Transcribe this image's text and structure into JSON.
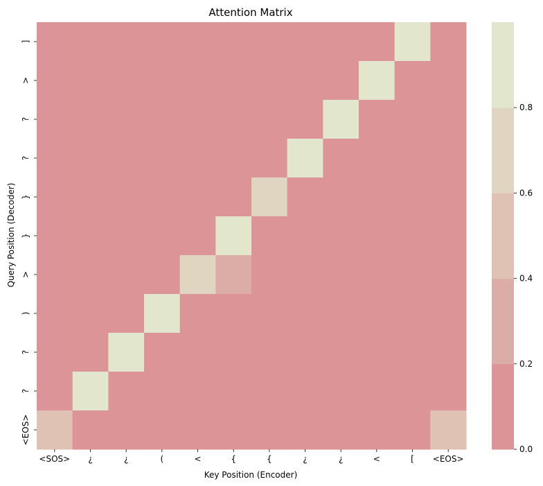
{
  "chart_data": {
    "type": "heatmap",
    "title": "Attention Matrix",
    "xlabel": "Key Position (Encoder)",
    "ylabel": "Query Position (Decoder)",
    "x_categories": [
      "<SOS>",
      "¿",
      "¿",
      "(",
      "<",
      "{",
      "{",
      "¿",
      "¿",
      "<",
      "[",
      "<EOS>"
    ],
    "y_categories": [
      "]",
      ">",
      "?",
      "?",
      "}",
      "}",
      ">",
      ")",
      "?",
      "?",
      "<EOS>"
    ],
    "values": [
      [
        0,
        0,
        0,
        0,
        0,
        0,
        0,
        0,
        0,
        0,
        0.9,
        0
      ],
      [
        0,
        0,
        0,
        0,
        0,
        0,
        0,
        0,
        0,
        0.9,
        0,
        0
      ],
      [
        0,
        0,
        0,
        0,
        0,
        0,
        0,
        0,
        0.9,
        0,
        0,
        0
      ],
      [
        0,
        0,
        0,
        0,
        0,
        0,
        0,
        0.9,
        0,
        0,
        0,
        0
      ],
      [
        0,
        0,
        0,
        0,
        0,
        0,
        0.65,
        0,
        0,
        0,
        0,
        0
      ],
      [
        0,
        0,
        0,
        0,
        0,
        0.9,
        0,
        0,
        0,
        0,
        0,
        0
      ],
      [
        0,
        0,
        0,
        0,
        0.62,
        0.35,
        0,
        0,
        0,
        0,
        0,
        0
      ],
      [
        0,
        0,
        0,
        0.9,
        0,
        0,
        0,
        0,
        0,
        0,
        0,
        0
      ],
      [
        0,
        0,
        0.9,
        0,
        0,
        0,
        0,
        0,
        0,
        0,
        0,
        0
      ],
      [
        0,
        0.9,
        0,
        0,
        0,
        0,
        0,
        0,
        0,
        0,
        0,
        0
      ],
      [
        0.5,
        0,
        0,
        0,
        0,
        0,
        0,
        0,
        0,
        0,
        0,
        0.45
      ]
    ],
    "colorbar": {
      "min": 0,
      "max": 1,
      "ticks": [
        "0.0",
        "0.2",
        "0.4",
        "0.6",
        "0.8"
      ],
      "bin_edges": [
        0,
        0.2,
        0.4,
        0.6,
        0.8,
        1.0
      ],
      "bin_colors": [
        "#dc9497",
        "#dcada6",
        "#dfc2b3",
        "#e0d5c1",
        "#e2e6cc"
      ]
    }
  }
}
